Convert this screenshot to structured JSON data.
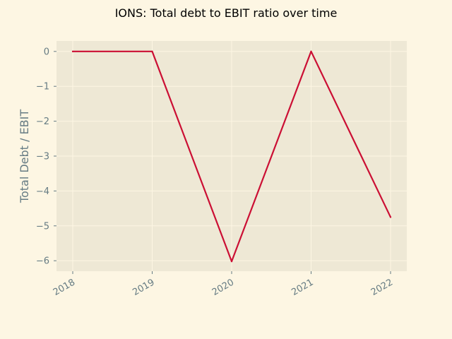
{
  "chart_data": {
    "type": "line",
    "title": "IONS: Total debt to EBIT ratio over time",
    "xlabel": "",
    "ylabel": "Total Debt / EBIT",
    "x": [
      "2018",
      "2019",
      "2020",
      "2021",
      "2022"
    ],
    "series": [
      {
        "values": [
          0,
          0,
          -6.02,
          0,
          -4.75
        ]
      }
    ],
    "ylim": [
      -6.3,
      0.3
    ],
    "yticks": [
      0,
      -1,
      -2,
      -3,
      -4,
      -5,
      -6
    ],
    "ytick_labels": [
      "0",
      "−1",
      "−2",
      "−3",
      "−4",
      "−5",
      "−6"
    ],
    "grid": true,
    "colors": {
      "figure_bg": "#fdf6e3",
      "plot_bg": "#eee8d5",
      "grid": "#fdf6e3",
      "line": "#cb0f34",
      "tick_text": "#657b83"
    }
  }
}
